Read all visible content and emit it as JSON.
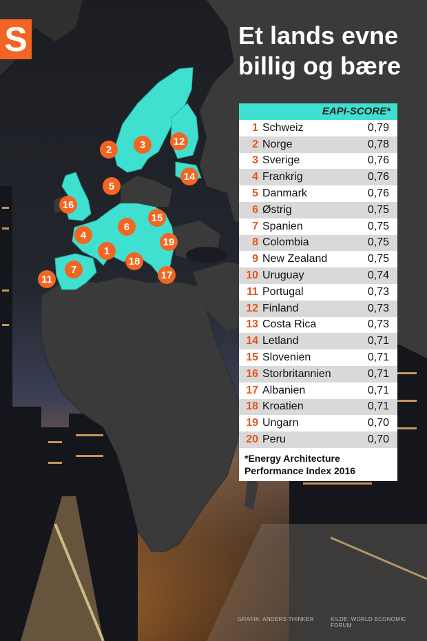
{
  "logo": {
    "letter": "S"
  },
  "headline": {
    "line1": "Et lands evne",
    "line2": "billig og bære"
  },
  "colors": {
    "accent": "#f26522",
    "highlight": "#40e0d0",
    "land": "#3a3a3a"
  },
  "table": {
    "header": "EAPI-SCORE*",
    "rows": [
      {
        "rank": "1",
        "country": "Schweiz",
        "score": "0,79"
      },
      {
        "rank": "2",
        "country": "Norge",
        "score": "0,78"
      },
      {
        "rank": "3",
        "country": "Sverige",
        "score": "0,76"
      },
      {
        "rank": "4",
        "country": "Frankrig",
        "score": "0,76"
      },
      {
        "rank": "5",
        "country": "Danmark",
        "score": "0,76"
      },
      {
        "rank": "6",
        "country": "Østrig",
        "score": "0,75"
      },
      {
        "rank": "7",
        "country": "Spanien",
        "score": "0,75"
      },
      {
        "rank": "8",
        "country": "Colombia",
        "score": "0,75"
      },
      {
        "rank": "9",
        "country": "New Zealand",
        "score": "0,75"
      },
      {
        "rank": "10",
        "country": "Uruguay",
        "score": "0,74"
      },
      {
        "rank": "11",
        "country": "Portugal",
        "score": "0,73"
      },
      {
        "rank": "12",
        "country": "Finland",
        "score": "0,73"
      },
      {
        "rank": "13",
        "country": "Costa Rica",
        "score": "0,73"
      },
      {
        "rank": "14",
        "country": "Letland",
        "score": "0,71"
      },
      {
        "rank": "15",
        "country": "Slovenien",
        "score": "0,71"
      },
      {
        "rank": "16",
        "country": "Storbritannien",
        "score": "0,71"
      },
      {
        "rank": "17",
        "country": "Albanien",
        "score": "0,71"
      },
      {
        "rank": "18",
        "country": "Kroatien",
        "score": "0,71"
      },
      {
        "rank": "19",
        "country": "Ungarn",
        "score": "0,70"
      },
      {
        "rank": "20",
        "country": "Peru",
        "score": "0,70"
      }
    ],
    "footnote_line1": "*Energy Architecture",
    "footnote_line2": "Performance Index 2016"
  },
  "map_markers": [
    "1",
    "2",
    "3",
    "4",
    "5",
    "6",
    "7",
    "11",
    "12",
    "14",
    "15",
    "16",
    "17",
    "18",
    "19"
  ],
  "credits": {
    "graphic": "GRAFIK: ANDERS THINKER",
    "source": "KILDE: WORLD ECONOMIC FORUM"
  }
}
